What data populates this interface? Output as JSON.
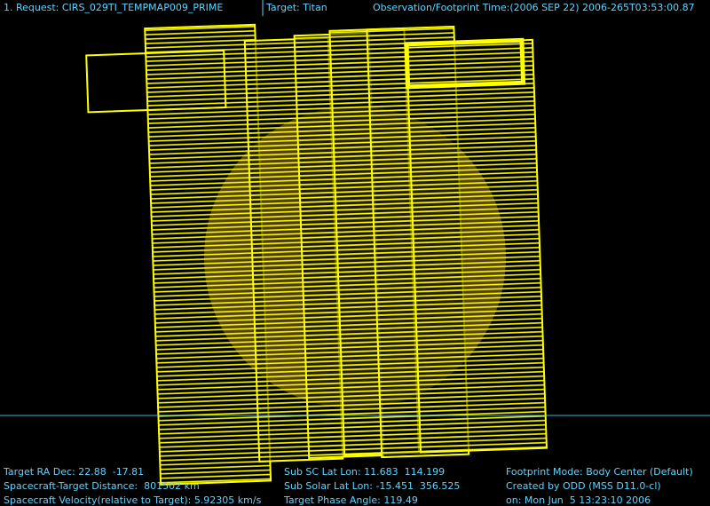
{
  "header": {
    "request": "1. Request: CIRS_029TI_TEMPMAP009_PRIME",
    "target": "Target: Titan",
    "time": "Observation/Footprint Time:(2006 SEP 22) 2006-265T03:53:00.87"
  },
  "info": {
    "left": [
      "Target RA Dec: 22.88  -17.81",
      "Spacecraft-Target Distance:  801502 km",
      "Spacecraft Velocity(relative to Target): 5.92305 km/s"
    ],
    "middle": [
      "Sub SC Lat Lon: 11.683  114.199",
      "Sub Solar Lat Lon: -15.451  356.525",
      "Target Phase Angle: 119.49"
    ],
    "right": [
      "Footprint Mode: Body Center (Default)",
      "Created by ODD (MSS D11.0-cl)",
      "on: Mon Jun  5 13:23:10 2006"
    ]
  }
}
